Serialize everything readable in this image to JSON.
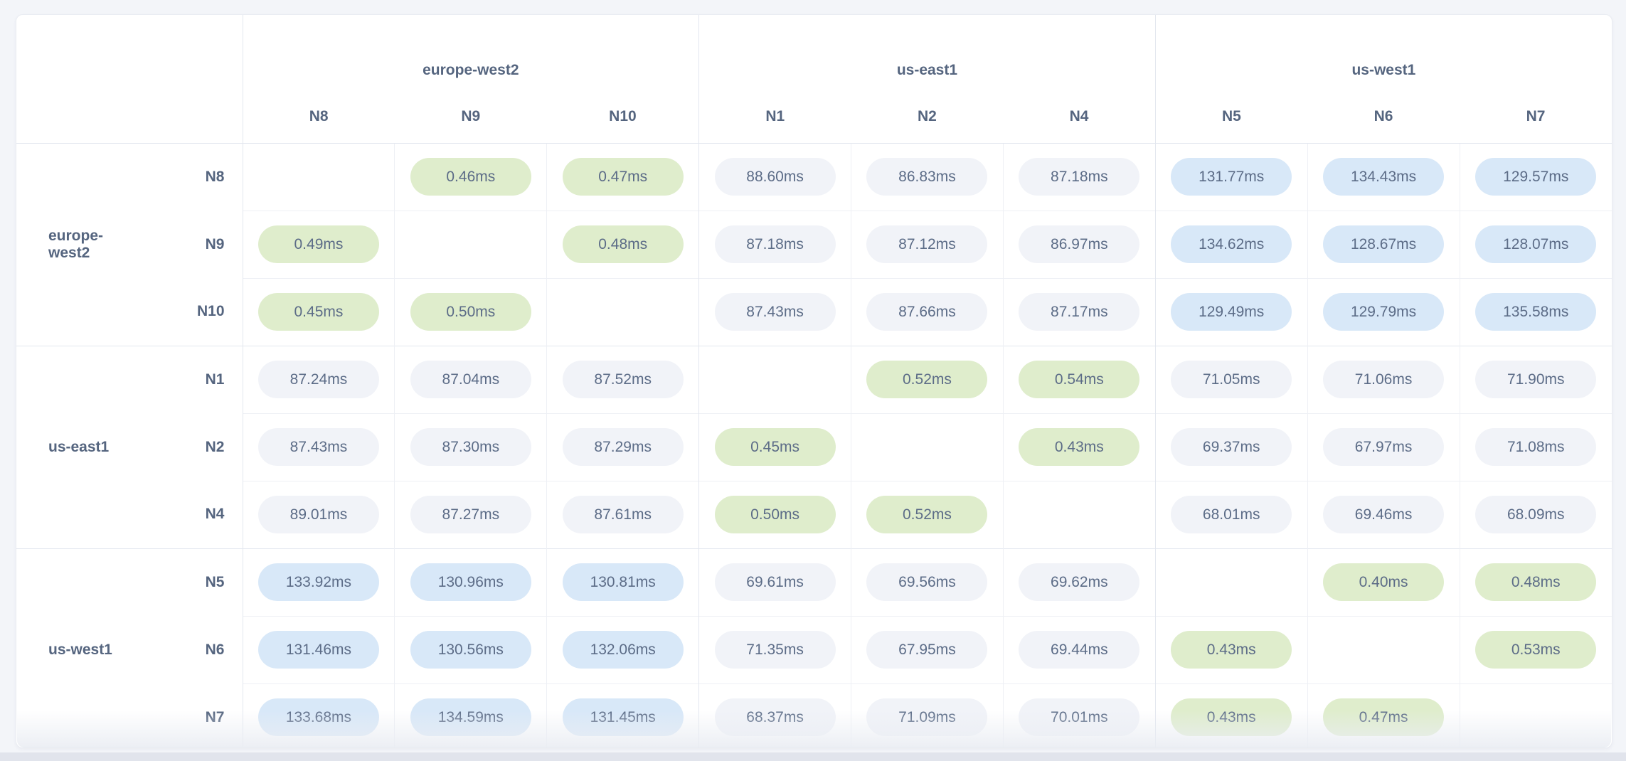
{
  "colors": {
    "page_bg": "#f3f5f9",
    "card_bg": "#ffffff",
    "card_border": "#e9ecf2",
    "grid_line": "#eef0f5",
    "group_line": "#e3e7ef",
    "header_text": "#55657f",
    "value_text": "#5c6c87",
    "pill_low": "#dfedcc",
    "pill_mid": "#f1f3f8",
    "pill_high": "#d8e8f8",
    "bottom_strip": "#e1e4ec"
  },
  "chart_data": {
    "type": "heatmap",
    "unit": "ms",
    "color_thresholds": {
      "low_below_ms": 1,
      "high_above_ms": 100
    },
    "column_groups": [
      {
        "label": "europe-west2",
        "columns": [
          "N8",
          "N9",
          "N10"
        ]
      },
      {
        "label": "us-east1",
        "columns": [
          "N1",
          "N2",
          "N4"
        ]
      },
      {
        "label": "us-west1",
        "columns": [
          "N5",
          "N6",
          "N7"
        ]
      }
    ],
    "row_groups": [
      {
        "label": "europe-west2",
        "rows": [
          {
            "node": "N8",
            "values": [
              null,
              "0.46ms",
              "0.47ms",
              "88.60ms",
              "86.83ms",
              "87.18ms",
              "131.77ms",
              "134.43ms",
              "129.57ms"
            ]
          },
          {
            "node": "N9",
            "values": [
              "0.49ms",
              null,
              "0.48ms",
              "87.18ms",
              "87.12ms",
              "86.97ms",
              "134.62ms",
              "128.67ms",
              "128.07ms"
            ]
          },
          {
            "node": "N10",
            "values": [
              "0.45ms",
              "0.50ms",
              null,
              "87.43ms",
              "87.66ms",
              "87.17ms",
              "129.49ms",
              "129.79ms",
              "135.58ms"
            ]
          }
        ]
      },
      {
        "label": "us-east1",
        "rows": [
          {
            "node": "N1",
            "values": [
              "87.24ms",
              "87.04ms",
              "87.52ms",
              null,
              "0.52ms",
              "0.54ms",
              "71.05ms",
              "71.06ms",
              "71.90ms"
            ]
          },
          {
            "node": "N2",
            "values": [
              "87.43ms",
              "87.30ms",
              "87.29ms",
              "0.45ms",
              null,
              "0.43ms",
              "69.37ms",
              "67.97ms",
              "71.08ms"
            ]
          },
          {
            "node": "N4",
            "values": [
              "89.01ms",
              "87.27ms",
              "87.61ms",
              "0.50ms",
              "0.52ms",
              null,
              "68.01ms",
              "69.46ms",
              "68.09ms"
            ]
          }
        ]
      },
      {
        "label": "us-west1",
        "rows": [
          {
            "node": "N5",
            "values": [
              "133.92ms",
              "130.96ms",
              "130.81ms",
              "69.61ms",
              "69.56ms",
              "69.62ms",
              null,
              "0.40ms",
              "0.48ms"
            ]
          },
          {
            "node": "N6",
            "values": [
              "131.46ms",
              "130.56ms",
              "132.06ms",
              "71.35ms",
              "67.95ms",
              "69.44ms",
              "0.43ms",
              null,
              "0.53ms"
            ]
          },
          {
            "node": "N7",
            "values": [
              "133.68ms",
              "134.59ms",
              "131.45ms",
              "68.37ms",
              "71.09ms",
              "70.01ms",
              "0.43ms",
              "0.47ms",
              null
            ]
          }
        ]
      }
    ]
  }
}
